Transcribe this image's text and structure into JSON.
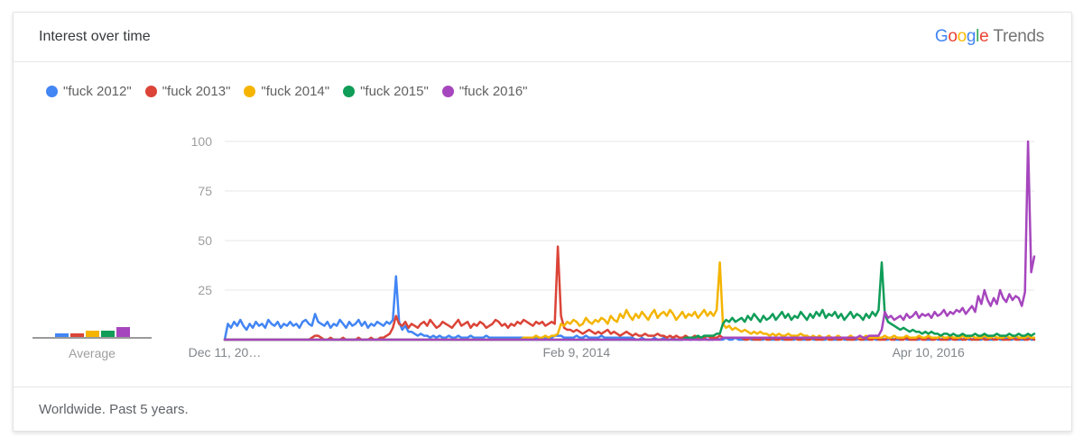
{
  "header": {
    "title": "Interest over time",
    "logo": {
      "letters": [
        {
          "ch": "G",
          "color": "#4285F4"
        },
        {
          "ch": "o",
          "color": "#EA4335"
        },
        {
          "ch": "o",
          "color": "#FBBC05"
        },
        {
          "ch": "g",
          "color": "#4285F4"
        },
        {
          "ch": "l",
          "color": "#34A853"
        },
        {
          "ch": "e",
          "color": "#EA4335"
        }
      ],
      "suffix": "Trends"
    }
  },
  "footer": {
    "text": "Worldwide. Past 5 years."
  },
  "chart_data": {
    "type": "line",
    "title": "Interest over time",
    "ylim": [
      0,
      100
    ],
    "yticks": [
      25,
      50,
      75,
      100
    ],
    "xticks": [
      {
        "label": "Dec 11, 20…",
        "pos": 0
      },
      {
        "label": "Feb 9, 2014",
        "pos": 0.4346
      },
      {
        "label": "Apr 10, 2016",
        "pos": 0.8692
      }
    ],
    "grid": true,
    "legend_position": "top",
    "average_label": "Average",
    "x_unit": "weeks",
    "series": [
      {
        "name": "\"fuck 2012\"",
        "color": "#4285F4",
        "average": 2,
        "values": [
          0,
          8,
          6,
          9,
          7,
          10,
          7,
          5,
          8,
          6,
          9,
          7,
          8,
          6,
          10,
          8,
          7,
          9,
          6,
          8,
          7,
          9,
          7,
          8,
          6,
          9,
          10,
          8,
          7,
          13,
          9,
          8,
          7,
          9,
          6,
          8,
          7,
          10,
          8,
          6,
          9,
          7,
          8,
          10,
          7,
          9,
          6,
          8,
          7,
          9,
          8,
          7,
          9,
          8,
          10,
          32,
          9,
          5,
          7,
          4,
          4,
          3,
          2,
          3,
          2,
          2,
          1,
          2,
          1,
          2,
          1,
          1,
          2,
          1,
          1,
          2,
          1,
          1,
          1,
          2,
          1,
          1,
          1,
          1,
          2,
          1,
          1,
          1,
          1,
          1,
          1,
          1,
          1,
          1,
          1,
          1,
          1,
          1,
          1,
          1,
          1,
          1,
          1,
          1,
          1,
          1,
          2,
          2,
          2,
          1,
          1,
          1,
          1,
          2,
          1,
          1,
          2,
          1,
          1,
          1,
          1,
          2,
          1,
          1,
          1,
          1,
          1,
          1,
          1,
          1,
          1,
          1,
          0,
          0,
          1,
          0,
          0,
          0,
          1,
          0,
          0,
          1,
          0,
          0,
          1,
          0,
          0,
          0,
          1,
          0,
          0,
          1,
          0,
          0,
          1,
          0,
          0,
          0,
          1,
          0,
          0,
          1,
          0,
          0,
          1,
          0,
          0,
          0,
          1,
          0,
          0,
          1,
          0,
          0,
          1,
          0,
          0,
          0,
          1,
          0,
          0,
          1,
          0,
          0,
          1,
          0,
          0,
          0,
          1,
          0,
          0,
          1,
          0,
          0,
          1,
          0,
          0,
          0,
          1,
          0,
          0,
          1,
          0,
          0,
          1,
          0,
          0,
          0,
          1,
          0,
          0,
          1,
          0,
          0,
          1,
          0,
          0,
          0,
          1,
          0,
          0,
          1,
          0,
          0,
          1,
          0,
          0,
          0,
          1,
          0,
          0,
          1,
          0,
          0,
          1,
          0,
          0,
          0,
          1,
          0,
          0,
          1,
          0,
          0,
          1,
          0,
          0,
          0,
          1,
          0,
          0,
          1,
          0,
          0,
          1,
          0,
          0,
          0,
          1,
          0,
          0
        ]
      },
      {
        "name": "\"fuck 2013\"",
        "color": "#DB4437",
        "average": 2,
        "values": [
          0,
          0,
          0,
          0,
          0,
          0,
          0,
          0,
          0,
          0,
          0,
          0,
          0,
          0,
          0,
          0,
          0,
          0,
          0,
          0,
          0,
          0,
          0,
          0,
          0,
          0,
          0,
          0,
          1,
          2,
          2,
          1,
          0,
          0,
          1,
          0,
          0,
          0,
          1,
          0,
          0,
          0,
          0,
          1,
          0,
          0,
          0,
          1,
          0,
          0,
          1,
          1,
          2,
          3,
          6,
          12,
          8,
          7,
          9,
          6,
          8,
          7,
          6,
          8,
          9,
          7,
          10,
          8,
          6,
          7,
          9,
          8,
          7,
          6,
          8,
          10,
          7,
          8,
          9,
          6,
          8,
          7,
          9,
          8,
          6,
          7,
          8,
          10,
          9,
          7,
          8,
          6,
          8,
          7,
          9,
          8,
          10,
          9,
          8,
          7,
          9,
          8,
          9,
          7,
          8,
          9,
          8,
          47,
          12,
          6,
          5,
          5,
          4,
          5,
          4,
          3,
          4,
          5,
          4,
          3,
          4,
          3,
          4,
          5,
          3,
          4,
          3,
          2,
          3,
          4,
          3,
          2,
          3,
          2,
          2,
          3,
          2,
          2,
          2,
          3,
          2,
          2,
          1,
          2,
          1,
          2,
          1,
          1,
          2,
          1,
          1,
          2,
          1,
          1,
          1,
          2,
          1,
          1,
          1,
          2,
          1,
          1,
          1,
          1,
          1,
          1,
          1,
          0,
          0,
          1,
          0,
          0,
          0,
          1,
          0,
          0,
          1,
          0,
          0,
          1,
          0,
          0,
          0,
          1,
          0,
          0,
          1,
          0,
          0,
          1,
          0,
          0,
          0,
          1,
          0,
          0,
          1,
          0,
          0,
          1,
          0,
          0,
          0,
          1,
          0,
          0,
          1,
          0,
          0,
          1,
          0,
          0,
          0,
          1,
          0,
          0,
          1,
          0,
          0,
          1,
          0,
          0,
          0,
          1,
          0,
          0,
          1,
          0,
          0,
          1,
          0,
          0,
          0,
          1,
          0,
          0,
          1,
          0,
          0,
          1,
          0,
          0,
          0,
          1,
          0,
          0,
          1,
          0,
          0,
          1,
          0,
          0,
          0,
          1,
          0,
          0,
          1,
          0,
          0,
          1,
          0
        ]
      },
      {
        "name": "\"fuck 2014\"",
        "color": "#F4B400",
        "average": 3,
        "values": [
          0,
          0,
          0,
          0,
          0,
          0,
          0,
          0,
          0,
          0,
          0,
          0,
          0,
          0,
          0,
          0,
          0,
          0,
          0,
          0,
          0,
          0,
          0,
          0,
          0,
          0,
          0,
          0,
          0,
          0,
          0,
          0,
          0,
          0,
          0,
          0,
          0,
          0,
          0,
          0,
          0,
          0,
          0,
          0,
          0,
          0,
          0,
          0,
          0,
          0,
          0,
          0,
          0,
          0,
          0,
          0,
          0,
          0,
          0,
          0,
          0,
          0,
          0,
          0,
          0,
          0,
          0,
          0,
          0,
          0,
          0,
          0,
          0,
          0,
          0,
          0,
          0,
          0,
          0,
          0,
          0,
          0,
          0,
          0,
          0,
          0,
          0,
          0,
          0,
          0,
          0,
          0,
          0,
          0,
          0,
          0,
          1,
          1,
          1,
          1,
          2,
          1,
          1,
          2,
          1,
          2,
          2,
          3,
          8,
          7,
          9,
          8,
          10,
          9,
          7,
          8,
          11,
          9,
          8,
          10,
          9,
          11,
          10,
          8,
          12,
          10,
          9,
          13,
          11,
          15,
          12,
          10,
          13,
          11,
          14,
          12,
          10,
          13,
          15,
          11,
          13,
          14,
          12,
          15,
          13,
          10,
          12,
          14,
          11,
          13,
          12,
          14,
          11,
          13,
          15,
          12,
          14,
          12,
          15,
          39,
          8,
          6,
          7,
          5,
          6,
          5,
          4,
          5,
          4,
          3,
          4,
          3,
          4,
          3,
          3,
          2,
          3,
          2,
          3,
          2,
          2,
          3,
          2,
          2,
          2,
          3,
          2,
          2,
          1,
          2,
          1,
          2,
          1,
          1,
          2,
          1,
          1,
          2,
          1,
          1,
          1,
          2,
          1,
          1,
          1,
          1,
          2,
          1,
          1,
          1,
          1,
          1,
          2,
          1,
          1,
          2,
          1,
          1,
          1,
          2,
          1,
          1,
          1,
          2,
          1,
          1,
          2,
          1,
          1,
          1,
          2,
          1,
          1,
          2,
          1,
          1,
          1,
          2,
          1,
          1,
          2,
          1,
          1,
          1,
          2,
          1,
          1,
          2,
          1,
          1,
          1,
          2,
          1,
          1,
          2,
          1,
          1,
          1,
          2,
          1,
          1
        ]
      },
      {
        "name": "\"fuck 2015\"",
        "color": "#0F9D58",
        "average": 3,
        "values": [
          0,
          0,
          0,
          0,
          0,
          0,
          0,
          0,
          0,
          0,
          0,
          0,
          0,
          0,
          0,
          0,
          0,
          0,
          0,
          0,
          0,
          0,
          0,
          0,
          0,
          0,
          0,
          0,
          0,
          0,
          0,
          0,
          0,
          0,
          0,
          0,
          0,
          0,
          0,
          0,
          0,
          0,
          0,
          0,
          0,
          0,
          0,
          0,
          0,
          0,
          0,
          0,
          0,
          0,
          0,
          0,
          0,
          0,
          0,
          0,
          0,
          0,
          0,
          0,
          0,
          0,
          0,
          0,
          0,
          0,
          0,
          0,
          0,
          0,
          0,
          0,
          0,
          0,
          0,
          0,
          0,
          0,
          0,
          0,
          0,
          0,
          0,
          0,
          0,
          0,
          0,
          0,
          0,
          0,
          0,
          0,
          0,
          0,
          0,
          0,
          0,
          0,
          0,
          0,
          0,
          0,
          0,
          0,
          0,
          0,
          0,
          0,
          0,
          0,
          0,
          0,
          0,
          0,
          0,
          0,
          0,
          0,
          0,
          0,
          0,
          0,
          0,
          0,
          0,
          0,
          0,
          0,
          0,
          0,
          0,
          0,
          0,
          0,
          0,
          0,
          0,
          0,
          0,
          0,
          0,
          0,
          0,
          0,
          1,
          1,
          1,
          1,
          2,
          1,
          2,
          2,
          2,
          2,
          3,
          3,
          8,
          10,
          9,
          11,
          9,
          10,
          11,
          9,
          12,
          10,
          13,
          11,
          9,
          12,
          10,
          11,
          13,
          10,
          12,
          14,
          11,
          13,
          10,
          12,
          11,
          14,
          12,
          10,
          13,
          11,
          14,
          12,
          15,
          11,
          13,
          12,
          14,
          11,
          13,
          10,
          12,
          14,
          11,
          13,
          12,
          10,
          13,
          11,
          14,
          12,
          15,
          39,
          13,
          9,
          8,
          7,
          6,
          5,
          6,
          5,
          4,
          5,
          4,
          4,
          3,
          4,
          3,
          4,
          3,
          3,
          2,
          3,
          3,
          2,
          3,
          2,
          2,
          3,
          2,
          2,
          2,
          3,
          2,
          2,
          3,
          2,
          2,
          2,
          3,
          2,
          2,
          2,
          3,
          2,
          2,
          3,
          2,
          2,
          3,
          2,
          3
        ]
      },
      {
        "name": "\"fuck 2016\"",
        "color": "#A646BE",
        "average": 5,
        "values": [
          0,
          0,
          0,
          0,
          0,
          0,
          0,
          0,
          0,
          0,
          0,
          0,
          0,
          0,
          0,
          0,
          0,
          0,
          0,
          0,
          0,
          0,
          0,
          0,
          0,
          0,
          0,
          0,
          0,
          0,
          0,
          0,
          0,
          0,
          0,
          0,
          0,
          0,
          0,
          0,
          0,
          0,
          0,
          0,
          0,
          0,
          0,
          0,
          0,
          0,
          0,
          0,
          0,
          0,
          0,
          0,
          0,
          0,
          0,
          0,
          0,
          0,
          0,
          0,
          0,
          0,
          0,
          0,
          0,
          0,
          0,
          0,
          0,
          0,
          0,
          0,
          0,
          0,
          0,
          0,
          0,
          0,
          0,
          0,
          0,
          0,
          0,
          0,
          0,
          0,
          0,
          0,
          0,
          0,
          0,
          0,
          0,
          0,
          0,
          0,
          0,
          0,
          0,
          0,
          0,
          0,
          0,
          0,
          0,
          0,
          0,
          0,
          0,
          0,
          0,
          0,
          0,
          0,
          0,
          0,
          0,
          0,
          0,
          0,
          0,
          0,
          0,
          0,
          0,
          0,
          0,
          0,
          0,
          0,
          0,
          0,
          0,
          0,
          0,
          0,
          0,
          0,
          0,
          0,
          0,
          0,
          0,
          0,
          0,
          0,
          0,
          0,
          0,
          0,
          0,
          0,
          0,
          0,
          0,
          0,
          1,
          1,
          1,
          1,
          1,
          1,
          1,
          1,
          1,
          1,
          1,
          1,
          1,
          1,
          1,
          1,
          1,
          1,
          1,
          1,
          1,
          1,
          1,
          1,
          1,
          1,
          1,
          1,
          1,
          1,
          1,
          1,
          1,
          1,
          1,
          1,
          1,
          1,
          1,
          1,
          1,
          1,
          1,
          1,
          2,
          1,
          1,
          2,
          2,
          2,
          2,
          5,
          14,
          11,
          12,
          10,
          11,
          12,
          10,
          13,
          11,
          12,
          14,
          11,
          13,
          12,
          13,
          11,
          14,
          12,
          13,
          15,
          12,
          14,
          13,
          15,
          14,
          16,
          13,
          15,
          17,
          14,
          22,
          18,
          25,
          20,
          17,
          21,
          18,
          25,
          21,
          19,
          23,
          20,
          22,
          21,
          17,
          24,
          100,
          34,
          42
        ]
      }
    ]
  }
}
